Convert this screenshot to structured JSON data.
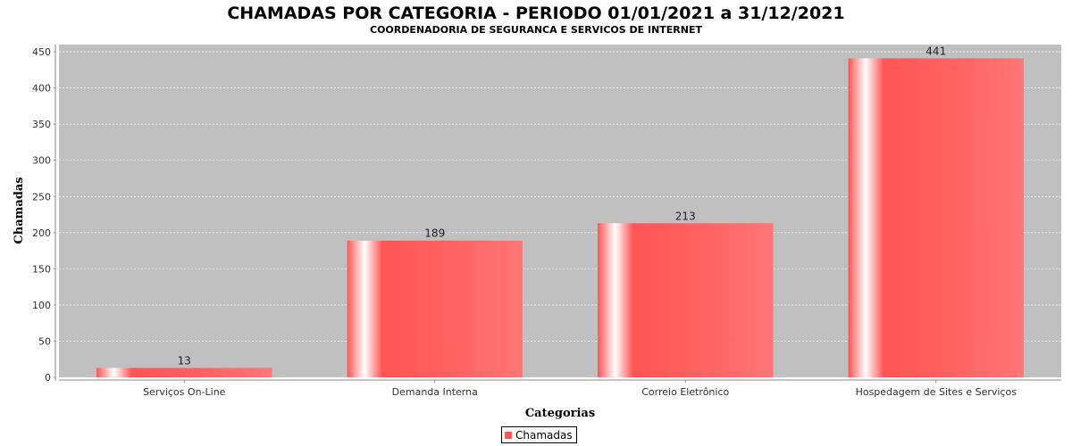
{
  "chart_data": {
    "type": "bar",
    "title": "CHAMADAS POR CATEGORIA - PERIODO 01/01/2021 a 31/12/2021",
    "subtitle": "COORDENADORIA DE SEGURANCA E SERVICOS DE INTERNET",
    "xlabel": "Categorias",
    "ylabel": "Chamadas",
    "categories": [
      "Serviços On-Line",
      "Demanda Interna",
      "Correio Eletrônico",
      "Hospedagem de Sites e Serviços"
    ],
    "series": [
      {
        "name": "Chamadas",
        "values": [
          13,
          189,
          213,
          441
        ],
        "color": "#ff5555"
      }
    ],
    "data_labels": [
      "13",
      "189",
      "213",
      "441"
    ],
    "ylim": [
      0,
      460
    ],
    "yticks": [
      "0",
      "50",
      "100",
      "150",
      "200",
      "250",
      "300",
      "350",
      "400",
      "450"
    ],
    "grid": true,
    "legend_position": "bottom-center",
    "plot_background": "#c0c0c0"
  }
}
